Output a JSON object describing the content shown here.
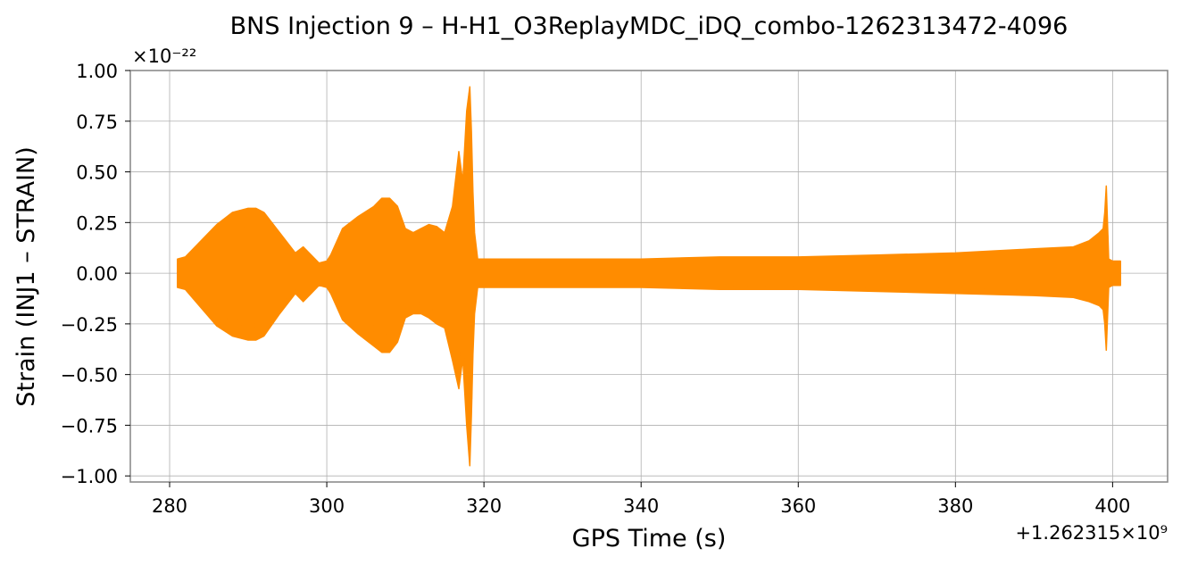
{
  "chart_data": {
    "type": "line",
    "title": "BNS Injection 9 – H-H1_O3ReplayMDC_iDQ_combo-1262313472-4096",
    "xlabel": "GPS Time (s)",
    "ylabel": "Strain (INJ1 – STRAIN)",
    "y_multiplier_label": "×10⁻²²",
    "x_offset_label": "+1.262315×10⁹",
    "xlim": [
      275,
      407
    ],
    "ylim": [
      -1.03,
      1.0
    ],
    "xticks": [
      280,
      300,
      320,
      340,
      360,
      380,
      400
    ],
    "xtick_labels": [
      "280",
      "300",
      "320",
      "340",
      "360",
      "380",
      "400"
    ],
    "yticks": [
      -1.0,
      -0.75,
      -0.5,
      -0.25,
      0.0,
      0.25,
      0.5,
      0.75,
      1.0
    ],
    "ytick_labels": [
      "−1.00",
      "−0.75",
      "−0.50",
      "−0.25",
      "0.00",
      "0.25",
      "0.50",
      "0.75",
      "1.00"
    ],
    "grid": true,
    "series": [
      {
        "color": "#ff8c00",
        "envelope": {
          "x": [
            281.0,
            282.0,
            284.0,
            286.0,
            288.0,
            290.0,
            291.0,
            292.0,
            294.0,
            296.0,
            297.0,
            298.0,
            299.0,
            300.0,
            300.5,
            302.0,
            304.0,
            306.0,
            307.0,
            308.0,
            309.0,
            310.0,
            311.0,
            312.0,
            313.0,
            314.0,
            315.0,
            316.0,
            316.8,
            317.3,
            317.8,
            318.2,
            318.4,
            318.6,
            318.8,
            319.2,
            322.0,
            330.0,
            340.0,
            350.0,
            360.0,
            370.0,
            380.0,
            390.0,
            395.0,
            397.0,
            398.3,
            398.8,
            399.0,
            399.2,
            399.5,
            400.0,
            401.0
          ],
          "upper": [
            0.07,
            0.08,
            0.16,
            0.24,
            0.3,
            0.32,
            0.32,
            0.3,
            0.2,
            0.1,
            0.13,
            0.09,
            0.05,
            0.06,
            0.09,
            0.22,
            0.28,
            0.33,
            0.37,
            0.37,
            0.33,
            0.22,
            0.2,
            0.22,
            0.24,
            0.23,
            0.2,
            0.33,
            0.6,
            0.45,
            0.8,
            0.92,
            0.7,
            0.4,
            0.2,
            0.07,
            0.07,
            0.07,
            0.07,
            0.08,
            0.08,
            0.09,
            0.1,
            0.12,
            0.13,
            0.16,
            0.2,
            0.22,
            0.3,
            0.43,
            0.07,
            0.06,
            0.06
          ],
          "lower": [
            -0.07,
            -0.08,
            -0.17,
            -0.26,
            -0.31,
            -0.33,
            -0.33,
            -0.31,
            -0.2,
            -0.1,
            -0.14,
            -0.1,
            -0.06,
            -0.07,
            -0.1,
            -0.23,
            -0.3,
            -0.36,
            -0.39,
            -0.39,
            -0.34,
            -0.22,
            -0.2,
            -0.2,
            -0.22,
            -0.25,
            -0.27,
            -0.43,
            -0.57,
            -0.42,
            -0.75,
            -0.95,
            -0.7,
            -0.4,
            -0.2,
            -0.07,
            -0.07,
            -0.07,
            -0.07,
            -0.08,
            -0.08,
            -0.09,
            -0.1,
            -0.11,
            -0.12,
            -0.14,
            -0.16,
            -0.18,
            -0.25,
            -0.38,
            -0.07,
            -0.06,
            -0.06
          ]
        }
      }
    ]
  }
}
